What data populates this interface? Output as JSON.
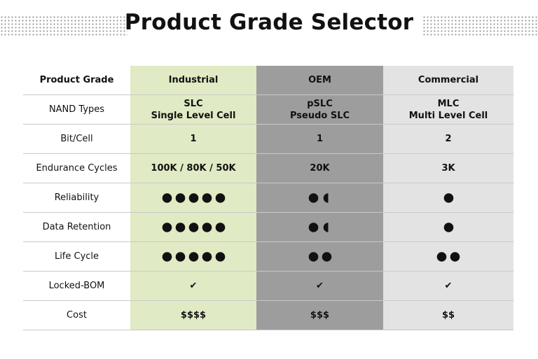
{
  "title": "Product Grade Selector",
  "table": {
    "header": [
      "Product Grade",
      "Industrial",
      "OEM",
      "Commercial"
    ],
    "rows": [
      {
        "label": "NAND Types",
        "cells": [
          [
            "SLC",
            "Single Level Cell"
          ],
          [
            "pSLC",
            "Pseudo SLC"
          ],
          [
            "MLC",
            "Multi Level Cell"
          ]
        ]
      },
      {
        "label": "Bit/Cell",
        "cells": [
          [
            "1"
          ],
          [
            "1"
          ],
          [
            "2"
          ]
        ]
      },
      {
        "label": "Endurance Cycles",
        "cells": [
          [
            "100K / 80K / 50K"
          ],
          [
            "20K"
          ],
          [
            "3K"
          ]
        ]
      },
      {
        "label": "Reliability",
        "ratings": [
          5,
          1.5,
          1
        ]
      },
      {
        "label": "Data Retention",
        "ratings": [
          5,
          1.5,
          1
        ]
      },
      {
        "label": "Life Cycle",
        "ratings": [
          5,
          2,
          2
        ]
      },
      {
        "label": "Locked-BOM",
        "cells": [
          [
            "✔"
          ],
          [
            "✔"
          ],
          [
            "✔"
          ]
        ]
      },
      {
        "label": "Cost",
        "cells": [
          [
            "$$$$"
          ],
          [
            "$$$"
          ],
          [
            "$$"
          ]
        ]
      }
    ]
  }
}
